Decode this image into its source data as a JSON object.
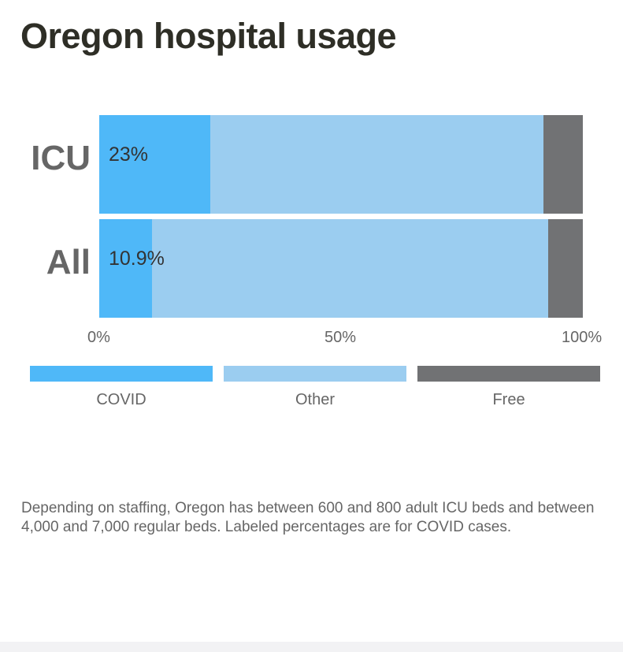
{
  "chart_data": {
    "type": "bar",
    "orientation": "horizontal",
    "stacked": true,
    "title": "Oregon hospital usage",
    "categories": [
      "ICU",
      "All"
    ],
    "series": [
      {
        "name": "COVID",
        "color": "#4fb8f8",
        "values": [
          23,
          10.9
        ]
      },
      {
        "name": "Other",
        "color": "#9bcdf0",
        "values": [
          68.9,
          81.9
        ]
      },
      {
        "name": "Free",
        "color": "#717274",
        "values": [
          8.1,
          7.2
        ]
      }
    ],
    "data_labels": [
      "23%",
      "10.9%"
    ],
    "xticks": [
      "0%",
      "50%",
      "100%"
    ],
    "xlim": [
      0,
      100
    ],
    "legend_position": "bottom"
  },
  "note": "Depending on staffing, Oregon has between 600 and 800 adult ICU beds and between 4,000 and 7,000 regular beds. Labeled percentages are for COVID cases."
}
